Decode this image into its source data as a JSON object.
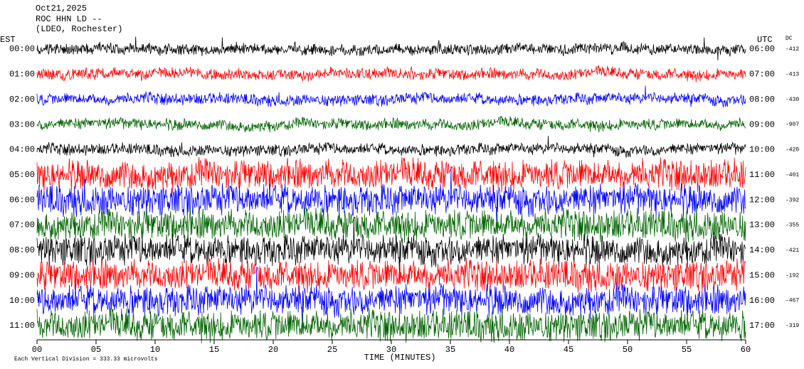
{
  "chart_data": {
    "type": "helicorder",
    "title_lines": [
      "Oct21,2025",
      "ROC HHN LD --",
      "(LDEO, Rochester)"
    ],
    "left_axis_title": "EST",
    "right_axis_title": "UTC",
    "dc_title": "DC",
    "xlabel": "TIME (MINUTES)",
    "footer": "Each Vertical Division =  333.33 microvolts",
    "xlim": [
      0,
      60
    ],
    "xticks": [
      {
        "value": 0,
        "label": "00"
      },
      {
        "value": 5,
        "label": "05"
      },
      {
        "value": 10,
        "label": "10"
      },
      {
        "value": 15,
        "label": "15"
      },
      {
        "value": 20,
        "label": "20"
      },
      {
        "value": 25,
        "label": "25"
      },
      {
        "value": 30,
        "label": "30"
      },
      {
        "value": 35,
        "label": "35"
      },
      {
        "value": 40,
        "label": "40"
      },
      {
        "value": 45,
        "label": "45"
      },
      {
        "value": 50,
        "label": "50"
      },
      {
        "value": 55,
        "label": "55"
      },
      {
        "value": 60,
        "label": "60"
      }
    ],
    "rows": [
      {
        "est": "00:00",
        "utc": "06:00",
        "dc": -412,
        "color": "#000000"
      },
      {
        "est": "01:00",
        "utc": "07:00",
        "dc": -413,
        "color": "#ff0000"
      },
      {
        "est": "02:00",
        "utc": "08:00",
        "dc": -430,
        "color": "#0000ff"
      },
      {
        "est": "03:00",
        "utc": "09:00",
        "dc": -907,
        "color": "#006400"
      },
      {
        "est": "04:00",
        "utc": "10:00",
        "dc": -420,
        "color": "#000000"
      },
      {
        "est": "05:00",
        "utc": "11:00",
        "dc": -401,
        "color": "#ff0000"
      },
      {
        "est": "06:00",
        "utc": "12:00",
        "dc": -392,
        "color": "#0000ff"
      },
      {
        "est": "07:00",
        "utc": "13:00",
        "dc": -355,
        "color": "#006400"
      },
      {
        "est": "08:00",
        "utc": "14:00",
        "dc": -421,
        "color": "#000000"
      },
      {
        "est": "09:00",
        "utc": "15:00",
        "dc": -192,
        "color": "#ff0000"
      },
      {
        "est": "10:00",
        "utc": "16:00",
        "dc": -467,
        "color": "#0000ff"
      },
      {
        "est": "11:00",
        "utc": "17:00",
        "dc": -319,
        "color": "#006400"
      }
    ]
  }
}
